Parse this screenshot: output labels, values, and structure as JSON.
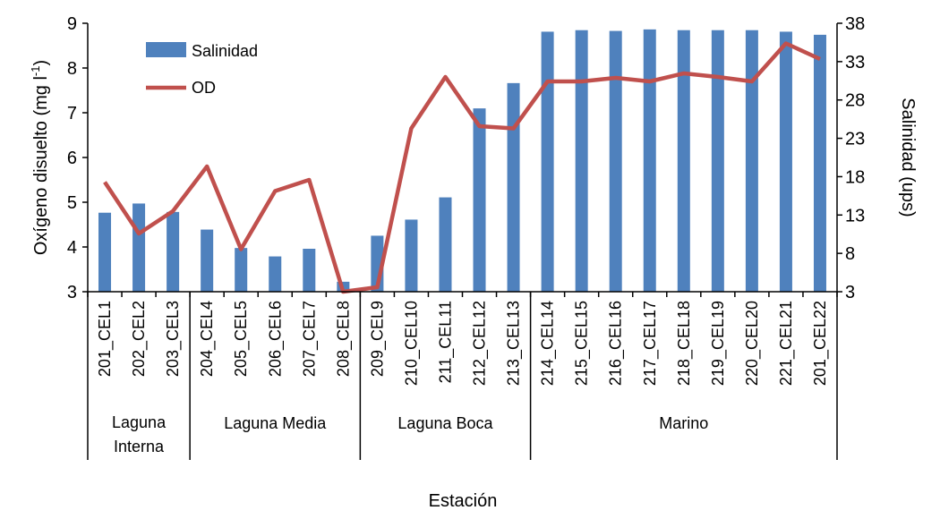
{
  "chart_data": {
    "type": "bar",
    "xlabel": "Estación",
    "ylabel_left": "Oxígeno disuelto (mg l",
    "ylabel_left_sup": "-1",
    "ylabel_left_end": ")",
    "ylabel_right": "Salinidad (ups)",
    "categories": [
      "201_CEL1",
      "202_CEL2",
      "203_CEL3",
      "204_CEL4",
      "205_CEL5",
      "206_CEL6",
      "207_CEL7",
      "208_CEL8",
      "209_CEL9",
      "210_CEL10",
      "211_CEL11",
      "212_CEL12",
      "213_CEL13",
      "214_CEL14",
      "215_CEL15",
      "216_CEL16",
      "217_CEL17",
      "218_CEL18",
      "219_CEL19",
      "220_CEL20",
      "221_CEL21",
      "201_CEL22"
    ],
    "groups": [
      {
        "label": "Laguna Interna",
        "lines": [
          "Laguna",
          "Interna"
        ],
        "start": 0,
        "end": 2
      },
      {
        "label": "Laguna Media",
        "lines": [
          "Laguna Media"
        ],
        "start": 3,
        "end": 7
      },
      {
        "label": "Laguna Boca",
        "lines": [
          "Laguna Boca"
        ],
        "start": 8,
        "end": 12
      },
      {
        "label": "Marino",
        "lines": [
          "Marino"
        ],
        "start": 13,
        "end": 21
      }
    ],
    "y_left": {
      "min": 3,
      "max": 9,
      "ticks": [
        3,
        4,
        5,
        6,
        7,
        8,
        9
      ]
    },
    "y_right": {
      "min": 3,
      "max": 38,
      "ticks": [
        3,
        8,
        13,
        18,
        23,
        28,
        33,
        38
      ]
    },
    "series": [
      {
        "name": "Salinidad",
        "type": "bar",
        "axis": "right",
        "color": "#4f81bd",
        "values": [
          13.3,
          14.5,
          13.4,
          11.1,
          8.7,
          7.6,
          8.6,
          4.3,
          10.3,
          12.4,
          15.3,
          26.9,
          30.2,
          36.9,
          37.1,
          37.0,
          37.2,
          37.1,
          37.1,
          37.1,
          36.9,
          36.5
        ]
      },
      {
        "name": "OD",
        "type": "line",
        "axis": "left",
        "color": "#c0504d",
        "values": [
          5.45,
          4.3,
          4.8,
          5.8,
          3.95,
          5.25,
          5.5,
          3.0,
          3.1,
          6.65,
          7.8,
          6.7,
          6.65,
          7.7,
          7.7,
          7.78,
          7.7,
          7.88,
          7.8,
          7.7,
          8.55,
          8.2
        ]
      }
    ]
  }
}
